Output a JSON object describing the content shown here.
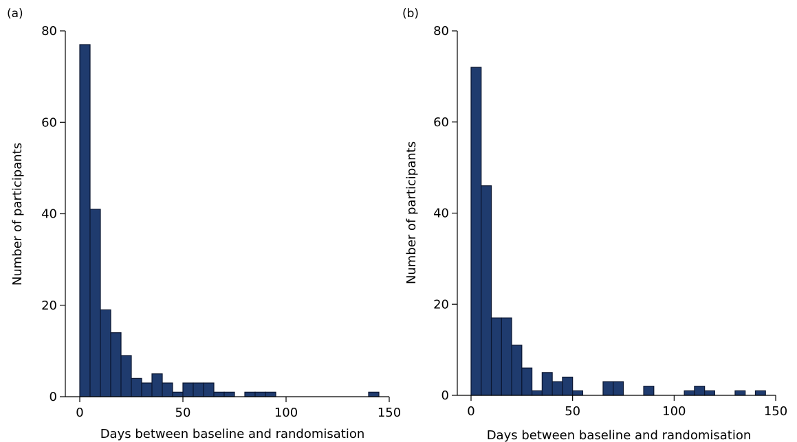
{
  "chart_data": [
    {
      "panel_label": "(a)",
      "type": "bar",
      "histogram": true,
      "bin_width": 5,
      "bins_start": [
        0,
        5,
        10,
        15,
        20,
        25,
        30,
        35,
        40,
        45,
        50,
        55,
        60,
        65,
        70,
        75,
        80,
        85,
        90,
        95,
        100,
        105,
        110,
        115,
        120,
        125,
        130,
        135,
        140
      ],
      "values": [
        77,
        41,
        19,
        14,
        9,
        4,
        3,
        5,
        3,
        1,
        3,
        3,
        3,
        1,
        1,
        0,
        1,
        1,
        1,
        0,
        0,
        0,
        0,
        0,
        0,
        0,
        0,
        0,
        1
      ],
      "xlabel": "Days between baseline and randomisation",
      "ylabel": "Number of participants",
      "xlim": [
        -5,
        150
      ],
      "ylim": [
        0,
        80
      ],
      "xticks": [
        0,
        50,
        100,
        150
      ],
      "yticks": [
        0,
        20,
        40,
        60,
        80
      ],
      "bar_color": "#1f3b6e",
      "grid": false
    },
    {
      "panel_label": "(b)",
      "type": "bar",
      "histogram": true,
      "bin_width": 5,
      "bins_start": [
        0,
        5,
        10,
        15,
        20,
        25,
        30,
        35,
        40,
        45,
        50,
        55,
        60,
        65,
        70,
        75,
        80,
        85,
        90,
        95,
        100,
        105,
        110,
        115,
        120,
        125,
        130,
        135,
        140
      ],
      "values": [
        72,
        46,
        17,
        17,
        11,
        6,
        1,
        5,
        3,
        4,
        1,
        0,
        0,
        3,
        3,
        0,
        0,
        2,
        0,
        0,
        0,
        1,
        2,
        1,
        0,
        0,
        1,
        0,
        1
      ],
      "xlabel": "Days between baseline and randomisation",
      "ylabel": "Number of participants",
      "xlim": [
        -5,
        150
      ],
      "ylim": [
        0,
        80
      ],
      "xticks": [
        0,
        50,
        100,
        150
      ],
      "yticks": [
        0,
        20,
        40,
        60,
        80
      ],
      "bar_color": "#1f3b6e",
      "grid": false
    }
  ]
}
